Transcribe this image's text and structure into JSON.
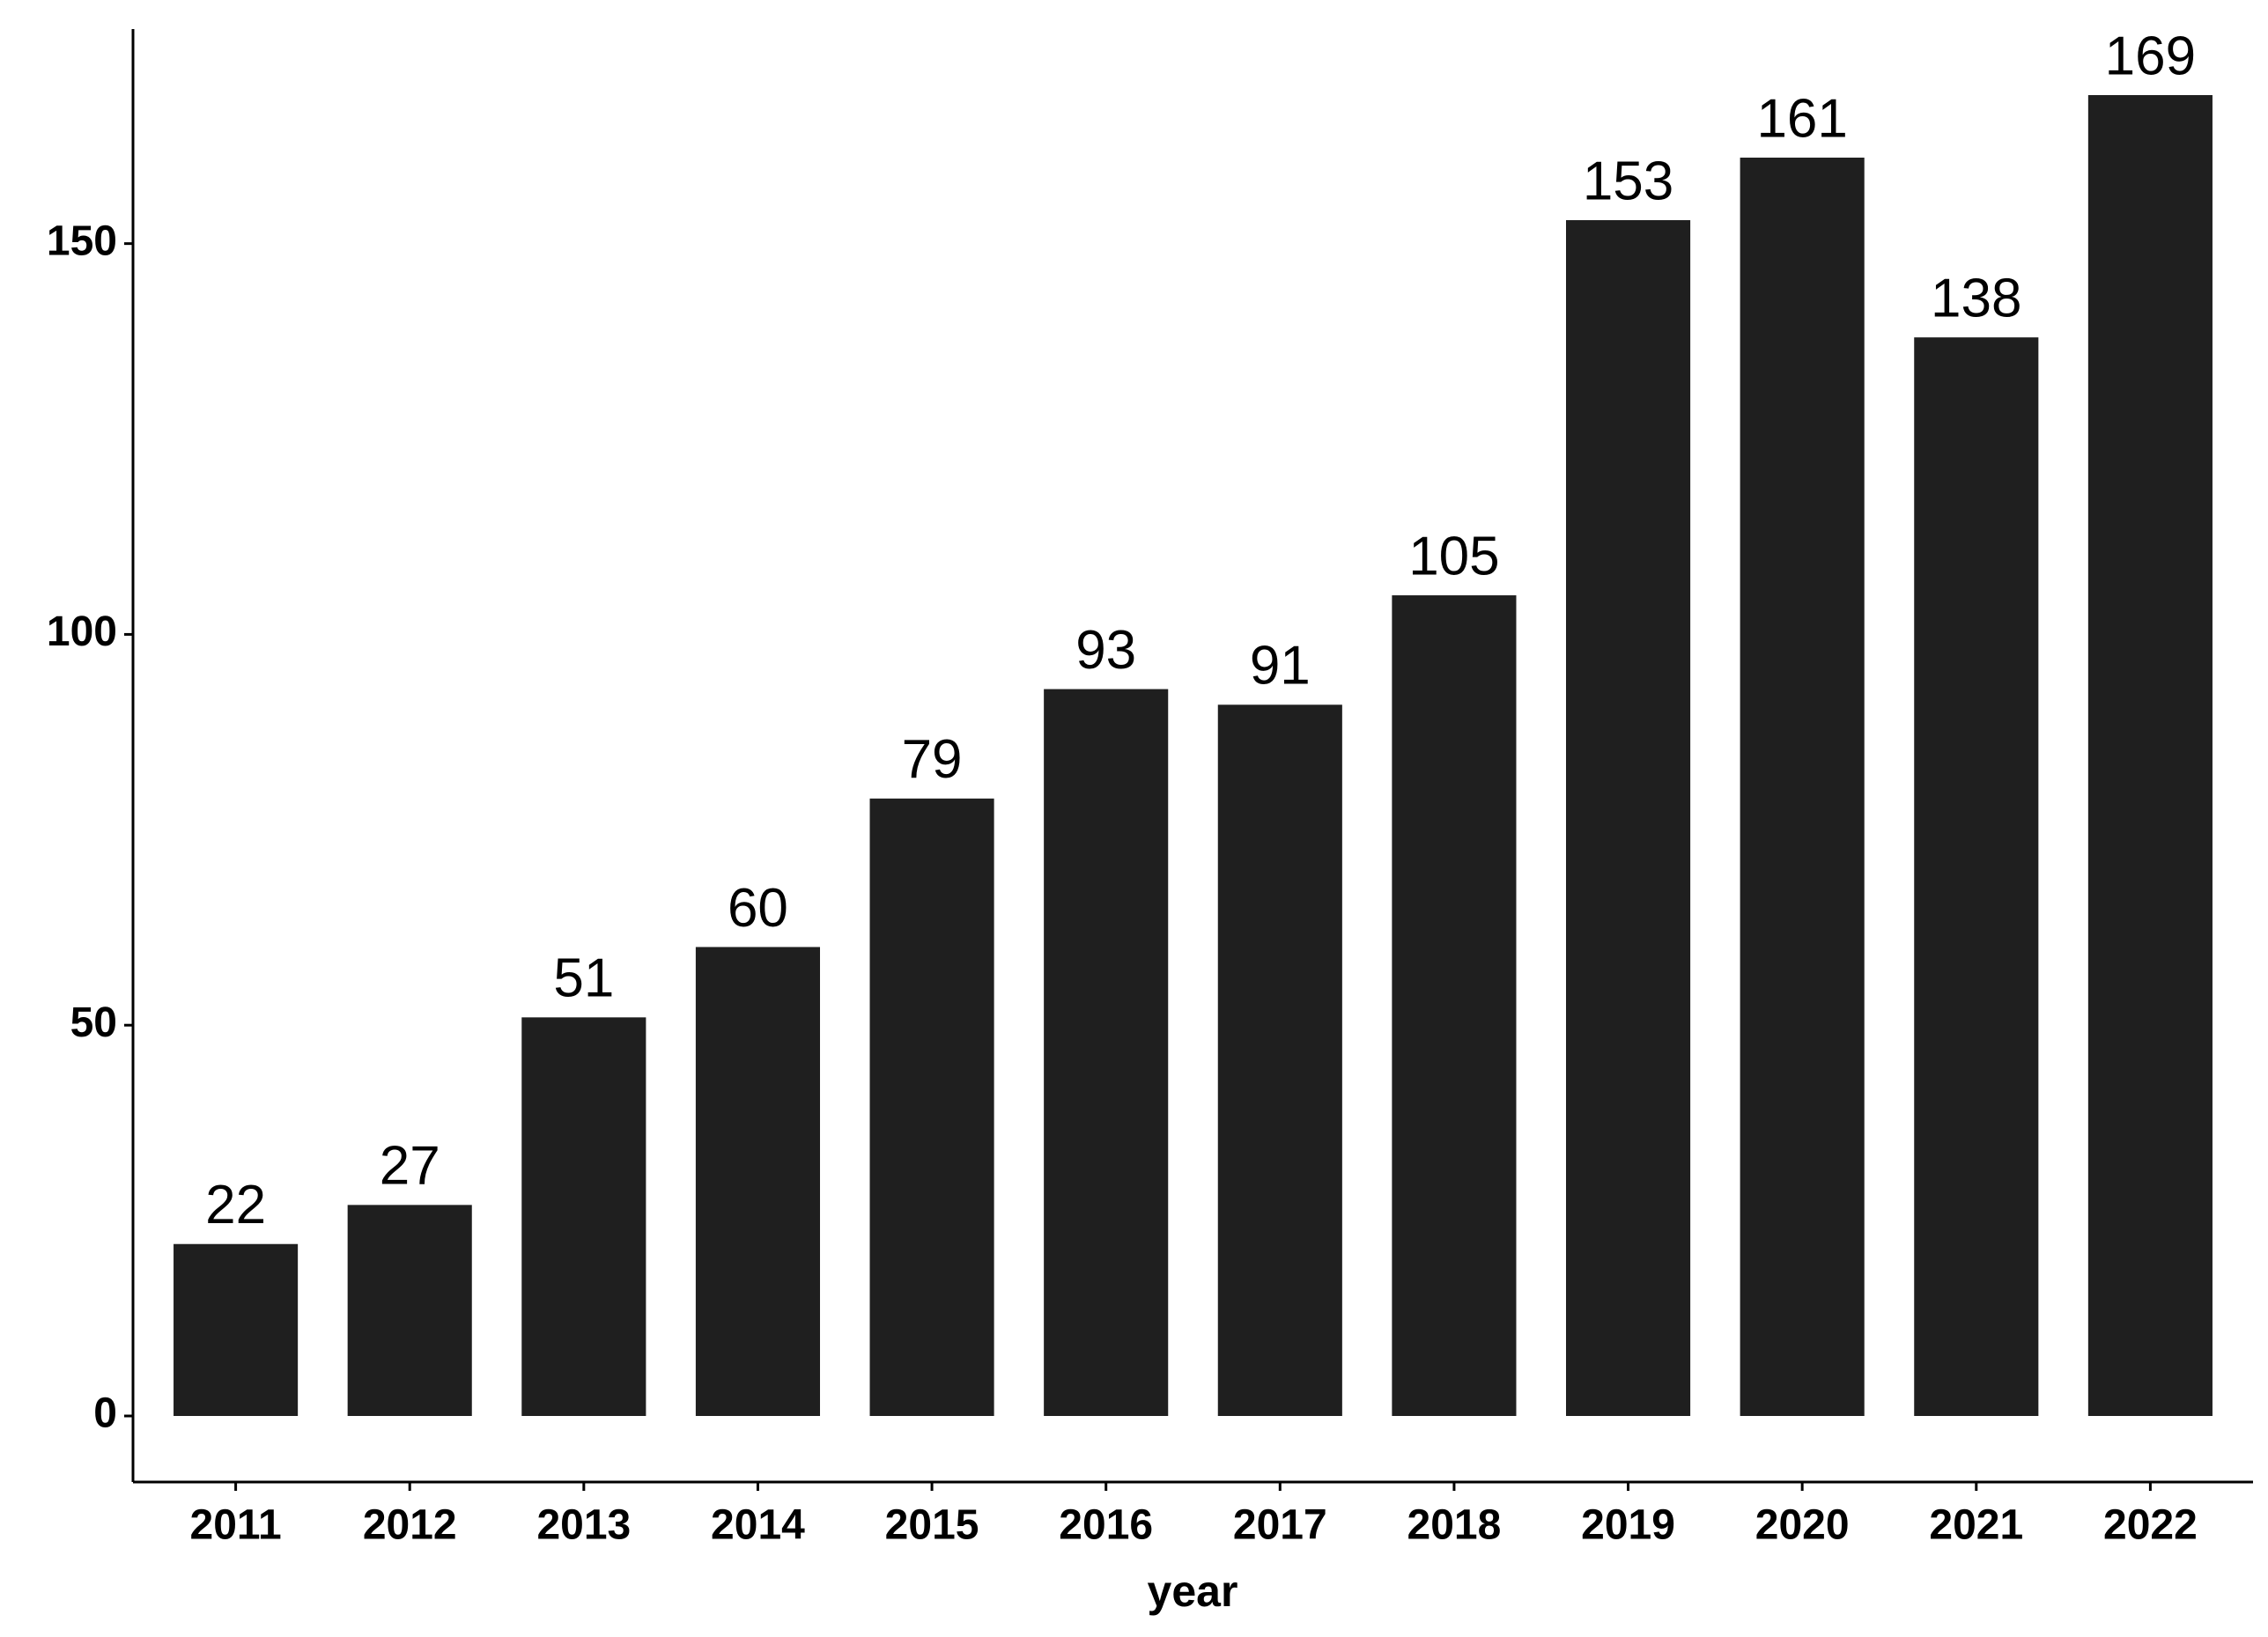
{
  "chart_data": {
    "type": "bar",
    "x_label": "year",
    "categories": [
      "2011",
      "2012",
      "2013",
      "2014",
      "2015",
      "2016",
      "2017",
      "2018",
      "2019",
      "2020",
      "2021",
      "2022"
    ],
    "values": [
      22,
      27,
      51,
      60,
      79,
      93,
      91,
      105,
      153,
      161,
      138,
      169
    ],
    "color": "#1f1f1f",
    "ylim": [
      -8.45,
      177.45
    ],
    "yticks": [
      0,
      50,
      100,
      150
    ],
    "grid": false
  }
}
